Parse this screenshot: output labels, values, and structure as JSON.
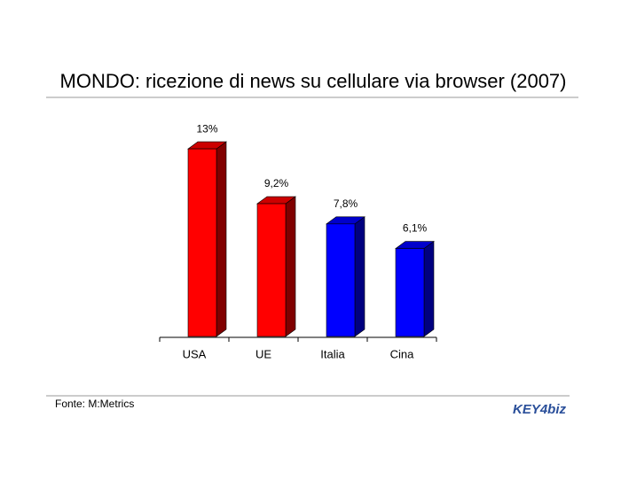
{
  "chart_data": {
    "type": "bar3d",
    "title": "MONDO: ricezione di news su cellulare via browser (2007)",
    "categories": [
      "USA",
      "UE",
      "Italia",
      "Cina"
    ],
    "values": [
      13,
      9.2,
      7.8,
      6.1
    ],
    "value_labels": [
      "13%",
      "9,2%",
      "7,8%",
      "6,1%"
    ],
    "colors": [
      "#ff0000",
      "#ff0000",
      "#0000ff",
      "#0000ff"
    ],
    "source": "Fonte: M:Metrics",
    "logo": "KEY4biz"
  }
}
